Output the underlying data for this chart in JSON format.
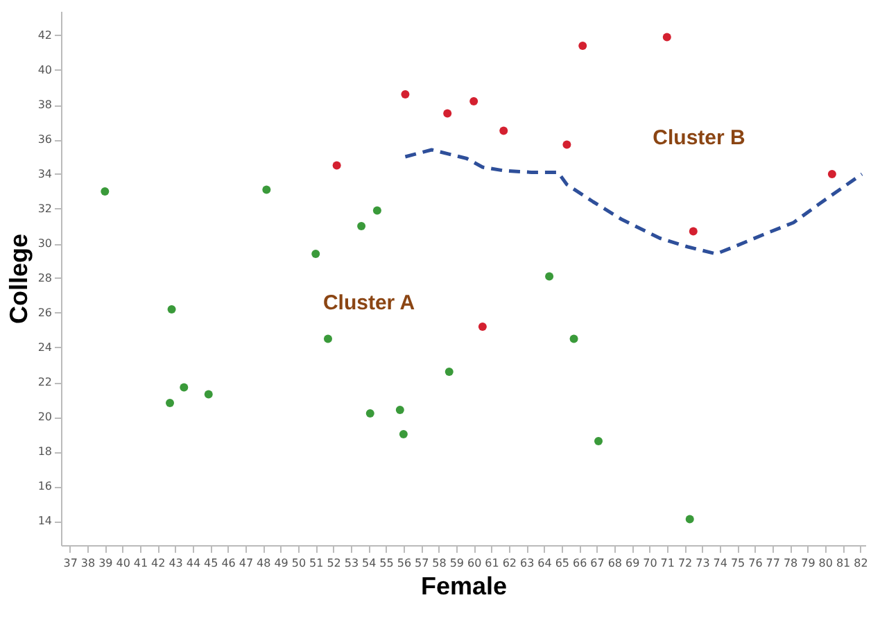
{
  "chart_data": {
    "type": "scatter",
    "xlabel": "Female",
    "ylabel": "College",
    "xlim": [
      36.5,
      82.3
    ],
    "ylim": [
      12.6,
      43.4
    ],
    "xticks": [
      37,
      38,
      39,
      40,
      41,
      42,
      43,
      44,
      45,
      46,
      47,
      48,
      49,
      50,
      51,
      52,
      53,
      54,
      55,
      56,
      57,
      58,
      59,
      60,
      61,
      62,
      63,
      64,
      65,
      66,
      67,
      68,
      69,
      70,
      71,
      72,
      73,
      74,
      75,
      76,
      77,
      78,
      79,
      80,
      81,
      82
    ],
    "yticks": [
      14,
      16,
      18,
      20,
      22,
      24,
      26,
      28,
      30,
      32,
      34,
      36,
      38,
      40,
      42
    ],
    "grid": false,
    "marker": "circle",
    "series": [
      {
        "color": "#3a9a3a",
        "x": [
          39.0,
          48.2,
          51.0,
          53.6,
          54.5,
          42.8,
          42.7,
          43.5,
          44.9,
          51.7,
          54.1,
          55.8,
          56.0,
          58.6,
          64.3,
          65.7,
          67.1,
          72.3
        ],
        "values": [
          33.0,
          33.1,
          29.4,
          31.0,
          31.9,
          26.2,
          20.8,
          21.7,
          21.3,
          24.5,
          20.2,
          20.4,
          19.0,
          22.6,
          28.1,
          24.5,
          18.6,
          14.1
        ]
      },
      {
        "color": "#d42030",
        "x": [
          52.2,
          56.1,
          58.5,
          60.0,
          61.7,
          65.3,
          66.2,
          71.0,
          80.4,
          72.5,
          60.5
        ],
        "values": [
          34.5,
          38.6,
          37.5,
          38.2,
          36.5,
          35.7,
          41.4,
          41.9,
          34.0,
          30.7,
          25.2
        ]
      },
      {
        "type": "line",
        "color": "#2e4f9a",
        "line_style": "dashed",
        "marker": "none",
        "x": [
          56.1,
          57.6,
          59.6,
          60.5,
          61.7,
          63.3,
          64.8,
          65.3,
          66.8,
          68.4,
          70.6,
          72.2,
          73.8,
          74.8,
          76.7,
          78.2,
          79.7,
          82.1
        ],
        "values": [
          35.0,
          35.4,
          34.9,
          34.4,
          34.2,
          34.1,
          34.1,
          33.4,
          32.4,
          31.4,
          30.3,
          29.8,
          29.4,
          29.8,
          30.6,
          31.2,
          32.3,
          34.0
        ]
      }
    ],
    "annotations": [
      "Cluster A",
      "Cluster B"
    ]
  }
}
